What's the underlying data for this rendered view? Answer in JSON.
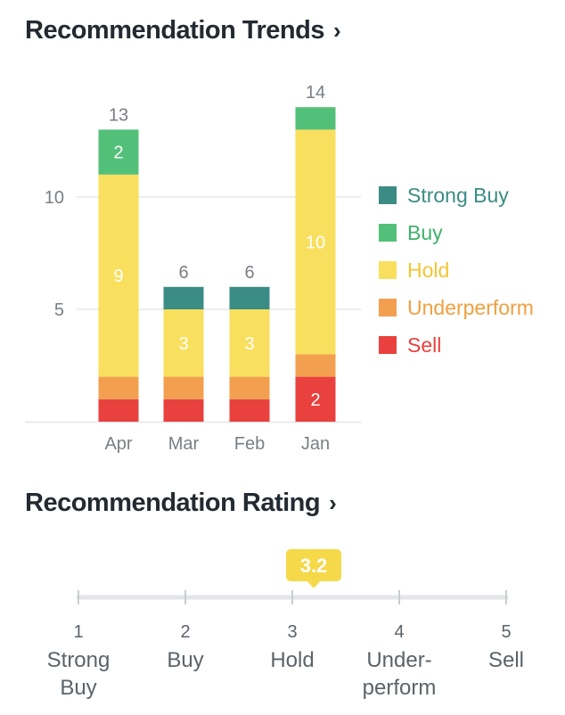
{
  "trends": {
    "title": "Recommendation Trends",
    "chevron": "›"
  },
  "rating": {
    "title": "Recommendation Rating",
    "chevron": "›",
    "value": 3.2,
    "value_label": "3.2",
    "min": 1,
    "max": 5,
    "marker_color": "#f5d949",
    "scale": [
      {
        "num": "1",
        "lines": [
          "Strong",
          "Buy"
        ]
      },
      {
        "num": "2",
        "lines": [
          "Buy"
        ]
      },
      {
        "num": "3",
        "lines": [
          "Hold"
        ]
      },
      {
        "num": "4",
        "lines": [
          "Under-",
          "perform"
        ]
      },
      {
        "num": "5",
        "lines": [
          "Sell"
        ]
      }
    ]
  },
  "chart_data": {
    "type": "bar",
    "stacked": true,
    "title": "Recommendation Trends",
    "categories": [
      "Apr",
      "Mar",
      "Feb",
      "Jan"
    ],
    "yticks": [
      5,
      10
    ],
    "ylim": [
      0,
      14
    ],
    "totals": [
      13,
      6,
      6,
      14
    ],
    "series": [
      {
        "name": "Sell",
        "color": "#e8413e",
        "values": [
          1,
          1,
          1,
          2
        ]
      },
      {
        "name": "Underperform",
        "color": "#f2a04f",
        "values": [
          1,
          1,
          1,
          1
        ]
      },
      {
        "name": "Hold",
        "color": "#f8df5e",
        "values": [
          9,
          3,
          3,
          10
        ]
      },
      {
        "name": "Buy",
        "color": "#53c079",
        "values": [
          2,
          0,
          0,
          1
        ]
      },
      {
        "name": "Strong Buy",
        "color": "#3b8c84",
        "values": [
          0,
          1,
          1,
          0
        ]
      }
    ],
    "legend": [
      {
        "name": "Strong Buy",
        "color": "#3b8c84",
        "text_color": "#3b8c84"
      },
      {
        "name": "Buy",
        "color": "#53c079",
        "text_color": "#3fb36a"
      },
      {
        "name": "Hold",
        "color": "#f8df5e",
        "text_color": "#f2c530"
      },
      {
        "name": "Underperform",
        "color": "#f2a04f",
        "text_color": "#f0a040"
      },
      {
        "name": "Sell",
        "color": "#e8413e",
        "text_color": "#e8413e"
      }
    ],
    "legend_position": "right"
  }
}
